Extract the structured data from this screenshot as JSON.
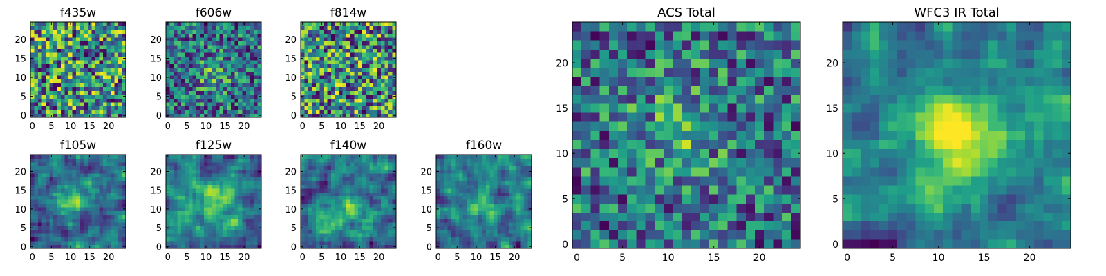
{
  "chart_data": [
    {
      "type": "heatmap",
      "title": "f435w",
      "x_range": [
        0,
        24
      ],
      "y_range": [
        0,
        24
      ],
      "x_ticks": [
        "0",
        "5",
        "10",
        "15",
        "20"
      ],
      "y_ticks": [
        "0",
        "5",
        "10",
        "15",
        "20"
      ],
      "grid_size": 25,
      "colormap": "viridis"
    },
    {
      "type": "heatmap",
      "title": "f606w",
      "x_range": [
        0,
        24
      ],
      "y_range": [
        0,
        24
      ],
      "x_ticks": [
        "0",
        "5",
        "10",
        "15",
        "20"
      ],
      "y_ticks": [
        "0",
        "5",
        "10",
        "15",
        "20"
      ],
      "grid_size": 25,
      "colormap": "viridis"
    },
    {
      "type": "heatmap",
      "title": "f814w",
      "x_range": [
        0,
        24
      ],
      "y_range": [
        0,
        24
      ],
      "x_ticks": [
        "0",
        "5",
        "10",
        "15",
        "20"
      ],
      "y_ticks": [
        "0",
        "5",
        "10",
        "15",
        "20"
      ],
      "grid_size": 25,
      "colormap": "viridis"
    },
    {
      "type": "heatmap",
      "title": "f105w",
      "x_range": [
        0,
        24
      ],
      "y_range": [
        0,
        24
      ],
      "x_ticks": [
        "0",
        "5",
        "10",
        "15",
        "20"
      ],
      "y_ticks": [
        "0",
        "5",
        "10",
        "15",
        "20"
      ],
      "grid_size": 25,
      "colormap": "viridis"
    },
    {
      "type": "heatmap",
      "title": "f125w",
      "x_range": [
        0,
        24
      ],
      "y_range": [
        0,
        24
      ],
      "x_ticks": [
        "0",
        "5",
        "10",
        "15",
        "20"
      ],
      "y_ticks": [
        "0",
        "5",
        "10",
        "15",
        "20"
      ],
      "grid_size": 25,
      "colormap": "viridis"
    },
    {
      "type": "heatmap",
      "title": "f140w",
      "x_range": [
        0,
        24
      ],
      "y_range": [
        0,
        24
      ],
      "x_ticks": [
        "0",
        "5",
        "10",
        "15",
        "20"
      ],
      "y_ticks": [
        "0",
        "5",
        "10",
        "15",
        "20"
      ],
      "grid_size": 25,
      "colormap": "viridis"
    },
    {
      "type": "heatmap",
      "title": "f160w",
      "x_range": [
        0,
        24
      ],
      "y_range": [
        0,
        24
      ],
      "x_ticks": [
        "0",
        "5",
        "10",
        "15",
        "20"
      ],
      "y_ticks": [
        "0",
        "5",
        "10",
        "15",
        "20"
      ],
      "grid_size": 25,
      "colormap": "viridis"
    },
    {
      "type": "heatmap",
      "title": "ACS Total",
      "x_range": [
        0,
        24
      ],
      "y_range": [
        0,
        24
      ],
      "x_ticks": [
        "0",
        "5",
        "10",
        "15",
        "20"
      ],
      "y_ticks": [
        "0",
        "5",
        "10",
        "15",
        "20"
      ],
      "grid_size": 25,
      "colormap": "viridis"
    },
    {
      "type": "heatmap",
      "title": "WFC3 IR Total",
      "x_range": [
        0,
        24
      ],
      "y_range": [
        0,
        24
      ],
      "x_ticks": [
        "0",
        "5",
        "10",
        "15",
        "20"
      ],
      "y_ticks": [
        "0",
        "5",
        "10",
        "15",
        "20"
      ],
      "grid_size": 25,
      "colormap": "viridis"
    }
  ]
}
